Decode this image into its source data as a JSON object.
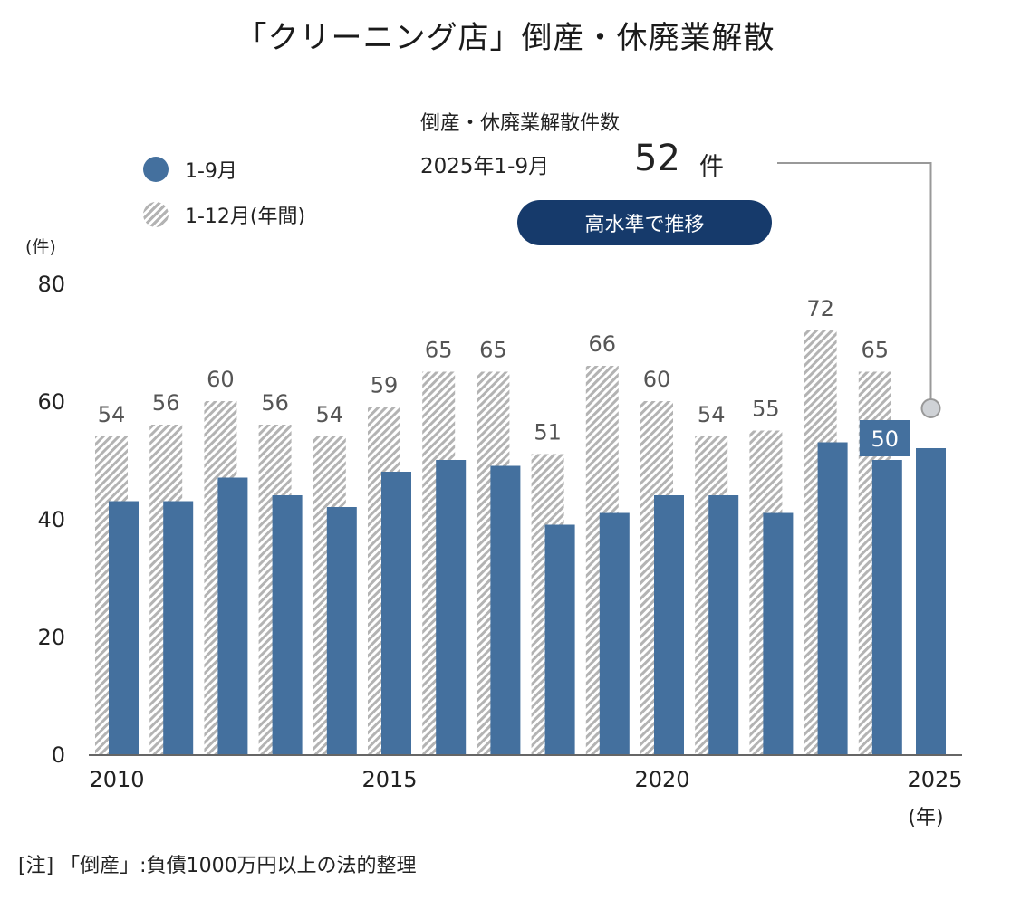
{
  "title": "「クリーニング店」倒産・休廃業解散",
  "legend": [
    {
      "label": "1-9月",
      "style": "solid",
      "color": "#44709e"
    },
    {
      "label": "1-12月(年間)",
      "style": "hatched",
      "color": "#b3b3b3"
    }
  ],
  "callout": {
    "label": "倒産・休廃業解散件数",
    "period": "2025年1-9月",
    "value": "52",
    "unit": "件",
    "badge": "高水準で推移"
  },
  "y_unit": "(件)",
  "x_unit": "(年)",
  "note": "[注] 「倒産」:負債1000万円以上の法的整理",
  "chart_data": {
    "type": "bar",
    "title": "「クリーニング店」倒産・休廃業解散",
    "xlabel": "(年)",
    "ylabel": "(件)",
    "ylim": [
      0,
      80
    ],
    "yticks": [
      0,
      20,
      40,
      60,
      80
    ],
    "xticks": [
      "2010",
      "2015",
      "2020",
      "2025"
    ],
    "categories": [
      "2010",
      "2011",
      "2012",
      "2013",
      "2014",
      "2015",
      "2016",
      "2017",
      "2018",
      "2019",
      "2020",
      "2021",
      "2022",
      "2023",
      "2024",
      "2025"
    ],
    "series": [
      {
        "name": "1-12月(年間)",
        "style": "hatched",
        "color": "#b3b3b3",
        "values": [
          54,
          56,
          60,
          56,
          54,
          59,
          65,
          65,
          51,
          66,
          60,
          54,
          55,
          72,
          65,
          null
        ],
        "labels": [
          "54",
          "56",
          "60",
          "56",
          "54",
          "59",
          "65",
          "65",
          "51",
          "66",
          "60",
          "54",
          "55",
          "72",
          "65",
          ""
        ]
      },
      {
        "name": "1-9月",
        "style": "solid",
        "color": "#44709e",
        "values": [
          43,
          43,
          47,
          44,
          42,
          48,
          50,
          49,
          39,
          41,
          44,
          44,
          41,
          53,
          50,
          52
        ],
        "labels": [
          "",
          "",
          "",
          "",
          "",
          "",
          "",
          "",
          "",
          "",
          "",
          "",
          "",
          "",
          "50",
          ""
        ]
      }
    ],
    "grid": false,
    "legend_position": "top-left"
  }
}
